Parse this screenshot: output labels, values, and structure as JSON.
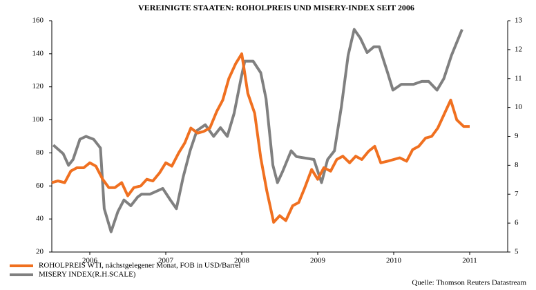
{
  "chart_data": {
    "type": "line",
    "title": "VEREINIGTE STAATEN: ROHOLPREIS UND MISERY-INDEX SEIT 2006",
    "source": "Quelle: Thomson Reuters Datastream",
    "xlim": [
      2006,
      2012
    ],
    "xticks": [
      {
        "value": 2006.5,
        "label": "2006"
      },
      {
        "value": 2007.5,
        "label": "2007"
      },
      {
        "value": 2008.5,
        "label": "2008"
      },
      {
        "value": 2009.5,
        "label": "2009"
      },
      {
        "value": 2010.5,
        "label": "2010"
      },
      {
        "value": 2011.5,
        "label": "2011"
      }
    ],
    "ylim": [
      20,
      160
    ],
    "yticks": [
      20,
      40,
      60,
      80,
      100,
      120,
      140,
      160
    ],
    "y2lim": [
      5,
      13
    ],
    "y2ticks": [
      5,
      6,
      7,
      8,
      9,
      10,
      11,
      12,
      13
    ],
    "series": [
      {
        "name": "ROHOLPREIS WTI, nächstgelegener Monat, FOB in USD/Barrel",
        "color": "#f07020",
        "x": [
          2006.0,
          2006.08,
          2006.17,
          2006.25,
          2006.33,
          2006.42,
          2006.5,
          2006.58,
          2006.67,
          2006.75,
          2006.83,
          2006.92,
          2007.0,
          2007.08,
          2007.17,
          2007.25,
          2007.33,
          2007.42,
          2007.5,
          2007.58,
          2007.67,
          2007.75,
          2007.83,
          2007.92,
          2008.0,
          2008.08,
          2008.17,
          2008.25,
          2008.33,
          2008.42,
          2008.5,
          2008.58,
          2008.67,
          2008.75,
          2008.83,
          2008.92,
          2009.0,
          2009.08,
          2009.17,
          2009.25,
          2009.33,
          2009.42,
          2009.5,
          2009.58,
          2009.67,
          2009.75,
          2009.83,
          2009.92,
          2010.0,
          2010.08,
          2010.17,
          2010.25,
          2010.33,
          2010.42,
          2010.5,
          2010.58,
          2010.67,
          2010.75,
          2010.83,
          2010.92,
          2011.0,
          2011.08,
          2011.17,
          2011.25,
          2011.33,
          2011.42,
          2011.5
        ],
        "values": [
          62,
          63,
          62,
          69,
          71,
          71,
          74,
          72,
          64,
          59,
          59,
          62,
          54,
          59,
          60,
          64,
          63,
          68,
          74,
          72,
          80,
          86,
          95,
          92,
          93,
          95,
          105,
          112,
          125,
          134,
          140,
          116,
          104,
          77,
          57,
          38,
          42,
          39,
          48,
          50,
          59,
          70,
          64,
          71,
          69,
          76,
          78,
          74,
          78,
          76,
          81,
          84,
          74,
          75,
          76,
          77,
          75,
          82,
          84,
          89,
          90,
          95,
          104,
          112,
          100,
          96,
          96
        ]
      },
      {
        "name": "MISERY INDEX(R.H.SCALE)",
        "color": "#808080",
        "axis": "y2",
        "x": [
          2006.02,
          2006.15,
          2006.22,
          2006.28,
          2006.37,
          2006.45,
          2006.55,
          2006.64,
          2006.69,
          2006.78,
          2006.87,
          2006.95,
          2007.04,
          2007.13,
          2007.18,
          2007.29,
          2007.46,
          2007.56,
          2007.64,
          2007.73,
          2007.82,
          2007.91,
          2008.02,
          2008.13,
          2008.22,
          2008.31,
          2008.4,
          2008.49,
          2008.54,
          2008.65,
          2008.75,
          2008.82,
          2008.91,
          2008.97,
          2009.04,
          2009.15,
          2009.22,
          2009.45,
          2009.55,
          2009.63,
          2009.72,
          2009.81,
          2009.9,
          2009.98,
          2010.06,
          2010.15,
          2010.24,
          2010.31,
          2010.42,
          2010.49,
          2010.6,
          2010.76,
          2010.87,
          2010.96,
          2011.07,
          2011.16,
          2011.26,
          2011.4
        ],
        "values": [
          8.7,
          8.4,
          8.0,
          8.2,
          8.9,
          9.0,
          8.9,
          8.6,
          6.5,
          5.7,
          6.4,
          6.8,
          6.6,
          6.9,
          7.0,
          7.0,
          7.2,
          6.8,
          6.5,
          7.6,
          8.5,
          9.2,
          9.4,
          9.0,
          9.3,
          9.0,
          9.8,
          11.0,
          11.6,
          11.6,
          11.2,
          10.3,
          8.0,
          7.4,
          7.8,
          8.5,
          8.3,
          8.2,
          7.4,
          8.2,
          8.5,
          10.0,
          11.8,
          12.7,
          12.4,
          11.9,
          12.1,
          12.1,
          11.2,
          10.6,
          10.8,
          10.8,
          10.9,
          10.9,
          10.6,
          11.0,
          11.8,
          12.7
        ]
      }
    ]
  }
}
